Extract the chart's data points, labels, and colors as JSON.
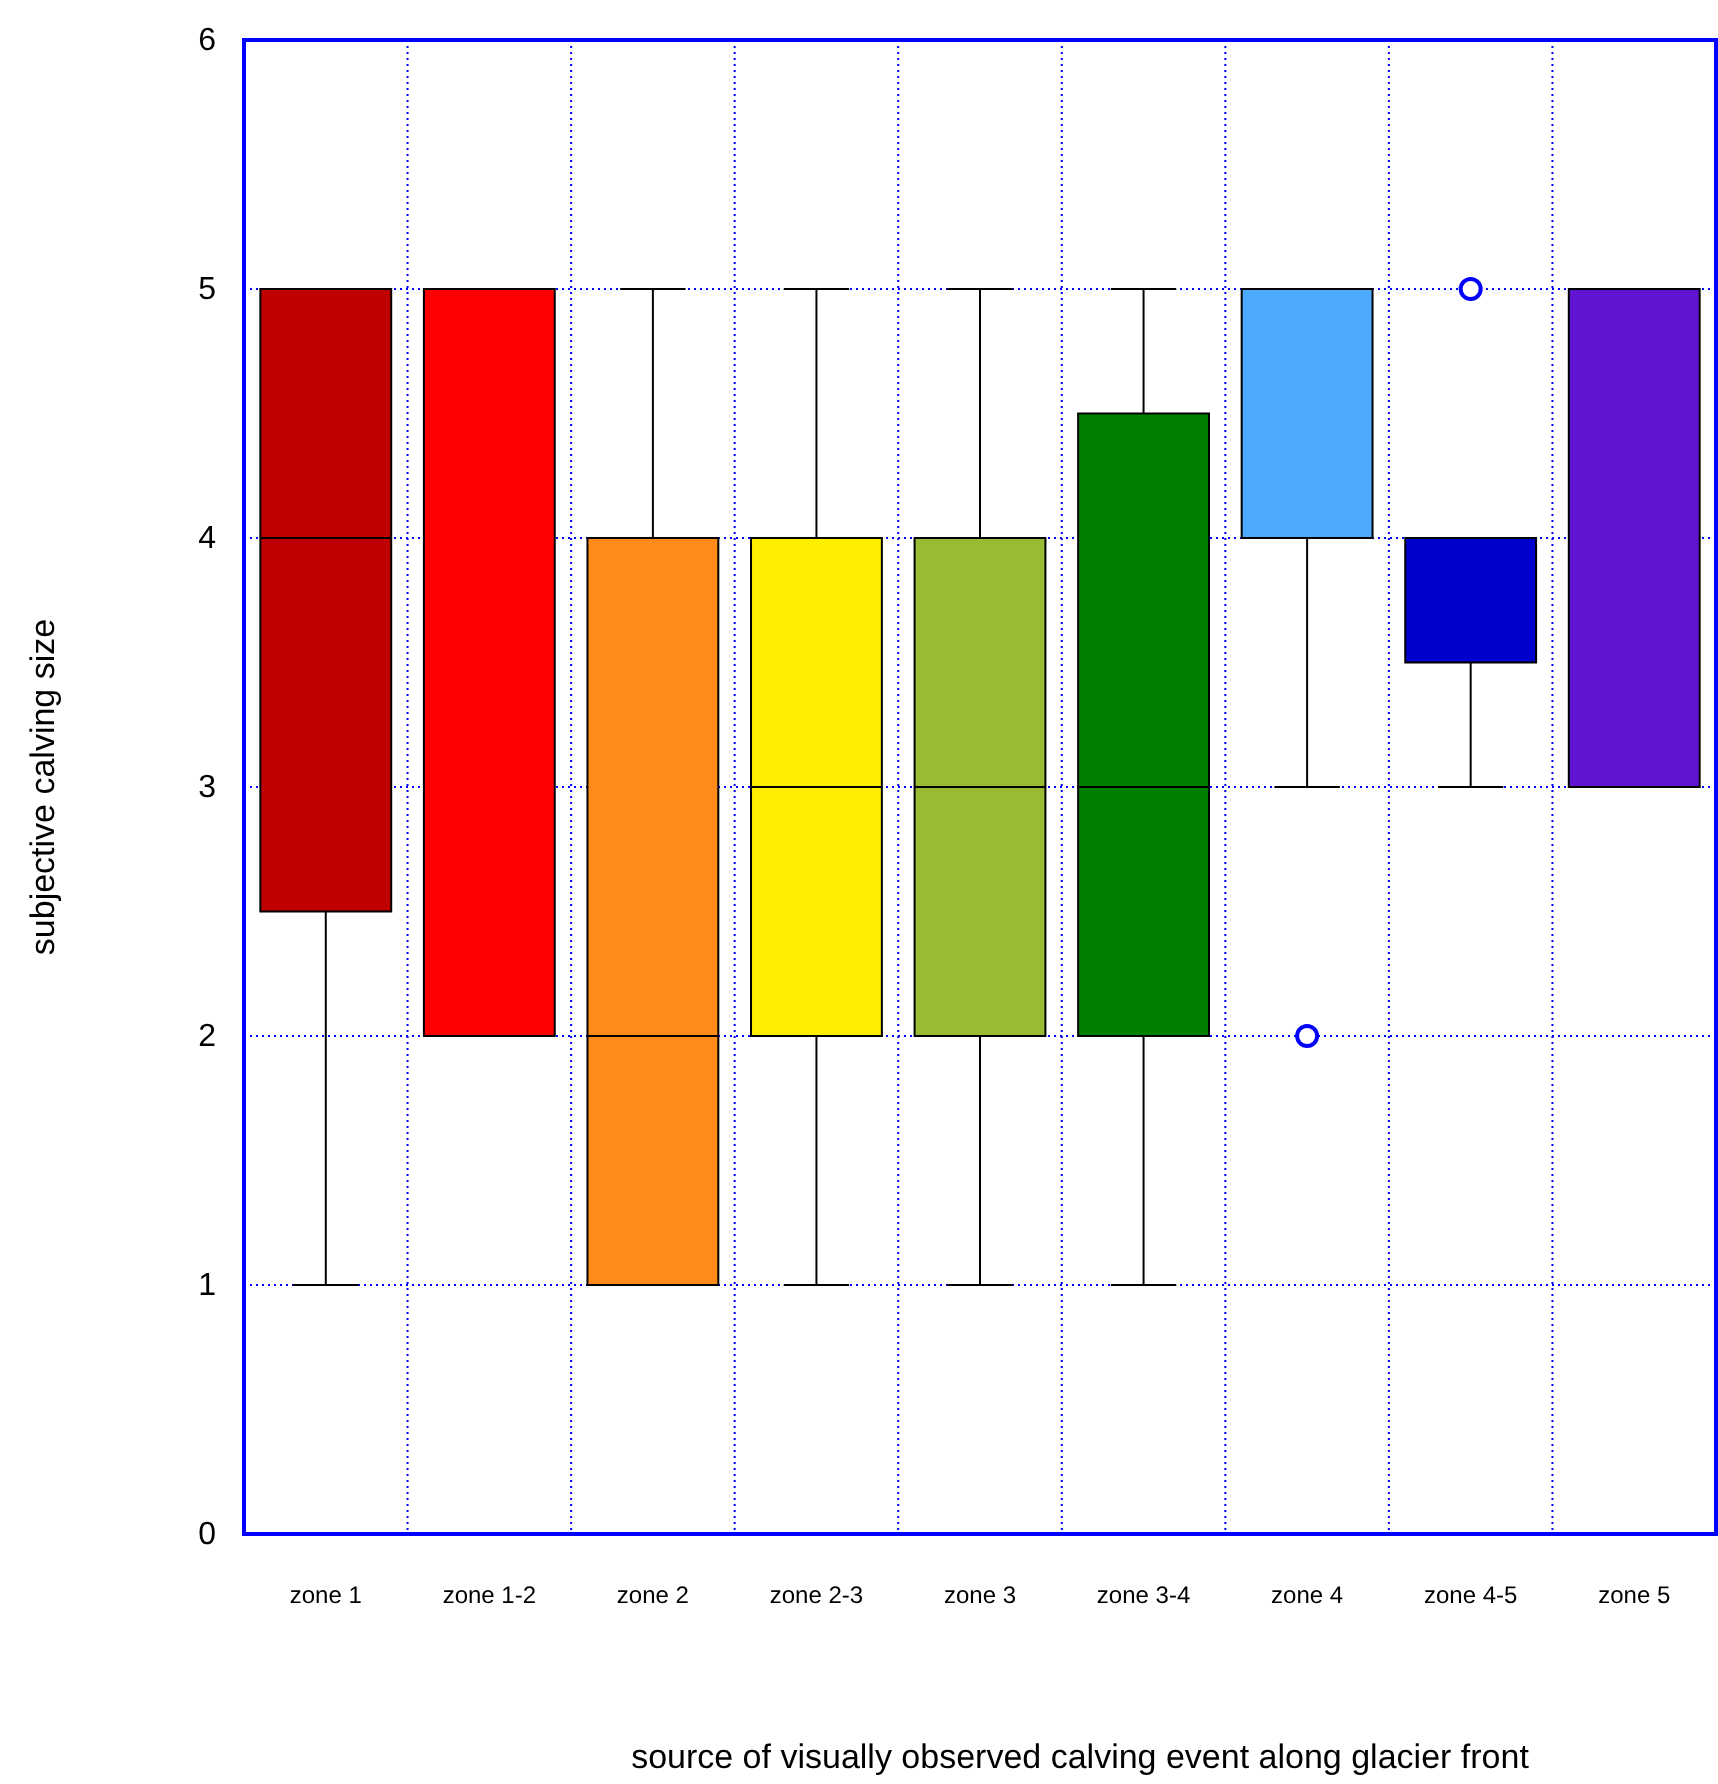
{
  "chart_data": {
    "type": "box",
    "xlabel": "source of visually observed calving event along glacier front",
    "ylabel": "subjective calving size",
    "categories": [
      "zone 1",
      "zone 1-2",
      "zone 2",
      "zone 2-3",
      "zone 3",
      "zone 3-4",
      "zone 4",
      "zone 4-5",
      "zone 5"
    ],
    "colors": [
      "#c00000",
      "#ff0000",
      "#ff8c1a",
      "#ffee00",
      "#99bb33",
      "#008000",
      "#4daaff",
      "#0000cc",
      "#6014d0"
    ],
    "boxes": [
      {
        "low": 1,
        "q1": 2.5,
        "median": 4,
        "q3": 5,
        "high": 5
      },
      {
        "low": 2,
        "q1": 2,
        "median": 5,
        "q3": 5,
        "high": 5
      },
      {
        "low": 1,
        "q1": 1,
        "median": 2,
        "q3": 4,
        "high": 5
      },
      {
        "low": 1,
        "q1": 2,
        "median": 3,
        "q3": 4,
        "high": 5
      },
      {
        "low": 1,
        "q1": 2,
        "median": 3,
        "q3": 4,
        "high": 5
      },
      {
        "low": 1,
        "q1": 2,
        "median": 3,
        "q3": 4.5,
        "high": 5
      },
      {
        "low": 3,
        "q1": 4,
        "median": 4,
        "q3": 5,
        "high": 5,
        "outliers": [
          2
        ]
      },
      {
        "low": 3,
        "q1": 3.5,
        "median": 4,
        "q3": 4,
        "high": 4,
        "outliers": [
          5
        ]
      },
      {
        "low": 3,
        "q1": 3,
        "median": 3,
        "q3": 5,
        "high": 5
      }
    ],
    "ylim": [
      0,
      6
    ],
    "yticks": [
      0,
      1,
      2,
      3,
      4,
      5,
      6
    ],
    "grid": true
  }
}
